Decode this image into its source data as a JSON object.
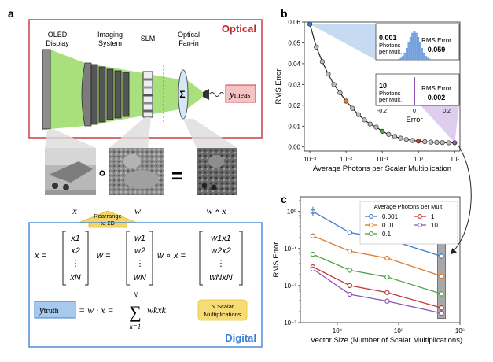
{
  "panel_a": {
    "label": "a",
    "optical_title": "Optical",
    "digital_title": "Digital",
    "components": {
      "oled_line1": "OLED",
      "oled_line2": "Display",
      "imaging_line1": "Imaging",
      "imaging_line2": "System",
      "slm": "SLM",
      "fanin_line1": "Optical",
      "fanin_line2": "Fan-in"
    },
    "sigma": "Σ",
    "y_meas_base": "y",
    "y_meas_sub": "meas",
    "image_labels": {
      "x": "x",
      "w": "w",
      "wx": "w ∘ x"
    },
    "operators": {
      "circ": "∘",
      "equals": "="
    },
    "rearrange_line1": "Rearrange",
    "rearrange_line2": "to 2D",
    "vectors": {
      "x_lhs": "x =",
      "x_entries": [
        "x1",
        "x2",
        "⋮",
        "xN"
      ],
      "w_lhs": "w =",
      "w_entries": [
        "w1",
        "w2",
        "⋮",
        "wN"
      ],
      "wx_lhs": "w ∘ x =",
      "wx_entries": [
        "w1x1",
        "w2x2",
        "⋮",
        "wNxN"
      ]
    },
    "equation": {
      "y_truth_base": "y",
      "y_truth_sub": "truth",
      "rhs": "= w · x = Σ wk xk",
      "sum_upper": "N",
      "sum_lower": "k=1",
      "sum_term": "wkxk"
    },
    "badge_line1": "N Scalar",
    "badge_line2": "Multiplications"
  },
  "panel_b": {
    "label": "b",
    "inset_top": {
      "photons_value": "0.001",
      "photons_line1": "Photons",
      "photons_line2": "per Mult.",
      "rms_label": "RMS Error",
      "rms_value": "0.059"
    },
    "inset_bottom": {
      "photons_value": "10",
      "photons_line1": "Photons",
      "photons_line2": "per Mult.",
      "rms_label": "RMS Error",
      "rms_value": "0.002"
    },
    "inset_ticks": [
      "-0.2",
      "0",
      "0.2"
    ],
    "inset_xlabel": "Error"
  },
  "panel_c": {
    "label": "c",
    "legend_title": "Average Photons per Mult."
  },
  "chart_data": [
    {
      "type": "line",
      "title": "",
      "xlabel": "Average Photons per Scalar Multiplication",
      "ylabel": "RMS Error",
      "xscale": "log",
      "xlim": [
        0.0007,
        14
      ],
      "ylim": [
        -0.002,
        0.06
      ],
      "xticks": [
        0.001,
        0.01,
        0.1,
        1,
        10
      ],
      "xtick_labels": [
        "10⁻³",
        "10⁻²",
        "10⁻¹",
        "10⁰",
        "10¹"
      ],
      "yticks": [
        0,
        0.01,
        0.02,
        0.03,
        0.04,
        0.05,
        0.06
      ],
      "ytick_labels": [
        "0.00",
        "0.01",
        "0.02",
        "0.03",
        "0.04",
        "0.05",
        "0.06"
      ],
      "x": [
        0.001,
        0.0015,
        0.0022,
        0.0032,
        0.0046,
        0.0068,
        0.01,
        0.015,
        0.022,
        0.032,
        0.046,
        0.068,
        0.1,
        0.15,
        0.22,
        0.32,
        0.46,
        0.68,
        1,
        1.5,
        2.2,
        3.2,
        4.6,
        6.8,
        10
      ],
      "y": [
        0.059,
        0.048,
        0.041,
        0.035,
        0.03,
        0.026,
        0.022,
        0.0185,
        0.0155,
        0.013,
        0.011,
        0.0095,
        0.0075,
        0.006,
        0.005,
        0.0042,
        0.0036,
        0.0031,
        0.0028,
        0.0025,
        0.0023,
        0.0022,
        0.0021,
        0.002,
        0.002
      ],
      "highlighted": [
        {
          "x": 0.001,
          "color": "#3b7dc4"
        },
        {
          "x": 0.01,
          "color": "#e07a2b"
        },
        {
          "x": 0.1,
          "color": "#4aa341"
        },
        {
          "x": 1,
          "color": "#c03838"
        },
        {
          "x": 10,
          "color": "#8e55b6"
        }
      ],
      "insets": [
        {
          "photons": 0.001,
          "rms_error": 0.059
        },
        {
          "photons": 10,
          "rms_error": 0.002
        }
      ]
    },
    {
      "type": "line",
      "title": "",
      "xlabel": "Vector Size (Number of Scalar Multiplications)",
      "ylabel": "RMS Error",
      "xscale": "log",
      "yscale": "log",
      "xlim": [
        2500,
        1000000
      ],
      "ylim": [
        0.001,
        2.5
      ],
      "xticks": [
        10000,
        100000,
        1000000
      ],
      "xtick_labels": [
        "10⁴",
        "10⁵",
        "10⁶"
      ],
      "yticks": [
        0.001,
        0.01,
        0.1,
        1
      ],
      "ytick_labels": [
        "10⁻³",
        "10⁻²",
        "10⁻¹",
        "10⁰"
      ],
      "legend_title": "Average Photons per Mult.",
      "legend_position": "top-right",
      "x": [
        4000,
        16000,
        65000,
        500000
      ],
      "series": [
        {
          "name": "0.001",
          "color": "#3b7dc4",
          "values": [
            1.0,
            0.27,
            0.18,
            0.062
          ]
        },
        {
          "name": "0.01",
          "color": "#e07a2b",
          "values": [
            0.22,
            0.085,
            0.055,
            0.018
          ]
        },
        {
          "name": "0.1",
          "color": "#4aa341",
          "values": [
            0.07,
            0.026,
            0.017,
            0.006
          ]
        },
        {
          "name": "1",
          "color": "#c03838",
          "values": [
            0.032,
            0.01,
            0.0065,
            0.0025
          ]
        },
        {
          "name": "10",
          "color": "#8e55b6",
          "values": [
            0.028,
            0.0058,
            0.0038,
            0.0018
          ]
        }
      ],
      "highlight_x": 500000
    }
  ]
}
